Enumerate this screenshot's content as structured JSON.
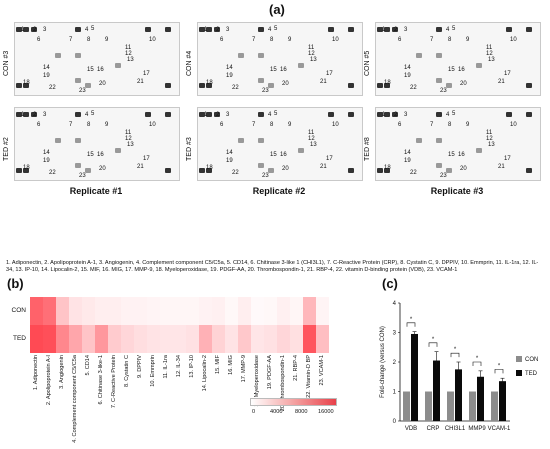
{
  "panel_labels": {
    "a": "(a)",
    "b": "(b)",
    "c": "(c)"
  },
  "blots": {
    "row_labels": [
      "CON #3",
      "CON #4",
      "CON #5",
      "TED #2",
      "TED #3",
      "TED #8"
    ],
    "replicates": [
      "Replicate #1",
      "Replicate #2",
      "Replicate #3"
    ],
    "spot_numbers": [
      "1",
      "2",
      "3",
      "4",
      "5",
      "6",
      "7",
      "8",
      "9",
      "10",
      "11",
      "12",
      "13",
      "14",
      "15",
      "16",
      "17",
      "18",
      "19",
      "20",
      "21",
      "22",
      "23"
    ]
  },
  "legend": "1. Adiponectin, 2. Apolipoprotein A-1, 3. Angiogenin, 4. Complement component C5/C5a, 5. CD14, 6. Chitinase 3-like 1 (CHI3L1), 7. C-Reactive Protein (CRP), 8. Cystatin C, 9. DPPIV, 10. Emmprin, 11. IL-1ra, 12. IL-34, 13. IP-10, 14. Lipocalin-2, 15. MIF, 16. MIG, 17. MMP-9, 18. Myeloperoxidase, 19. PDGF-AA, 20. Thrombospondin-1, 21. RBP-4, 22. vitamin D-binding protein (VDB), 23. VCAM-1",
  "heatmap": {
    "rows": [
      "CON",
      "TED"
    ],
    "columns": [
      "1. Adiponectin",
      "2. Apolipoprotein A-I",
      "3. Angiogenin",
      "4. Complement component C5/C5a",
      "5. CD14",
      "6. Chitinase 3-like-1",
      "7. C-Reactive Protein",
      "8. Cystatin C",
      "9. DPPIV",
      "10. Emmprin",
      "11. IL-1ra",
      "12. IL-34",
      "13. IP-10",
      "14. Lipocalin-2",
      "15. MIF",
      "16. MIG",
      "17. MMP-9",
      "18. Myeloperoxidase",
      "19. PDGF-AA",
      "20. Thrombospondin-1",
      "21. RBP-4",
      "22. Vitamin-D BP",
      "23. VCAM-1"
    ],
    "values": {
      "CON": [
        8500,
        7800,
        3200,
        1500,
        1200,
        900,
        900,
        700,
        700,
        600,
        500,
        500,
        500,
        700,
        800,
        400,
        900,
        300,
        400,
        800,
        500,
        3900,
        600
      ],
      "TED": [
        9800,
        9500,
        6500,
        4800,
        3200,
        5600,
        2800,
        2200,
        1800,
        1500,
        1400,
        1400,
        1600,
        4200,
        2400,
        1500,
        3000,
        1400,
        1600,
        2200,
        1700,
        9200,
        3500
      ]
    },
    "colorbar_ticks": [
      "0",
      "4000",
      "8000",
      "16000"
    ]
  },
  "chart_data": {
    "type": "bar",
    "categories": [
      "VDB",
      "CRP",
      "CHI3L1",
      "MMP9",
      "VCAM-1"
    ],
    "series": [
      {
        "name": "CON",
        "color": "#8c8c8c",
        "values": [
          1,
          1,
          1,
          1,
          1
        ]
      },
      {
        "name": "TED",
        "color": "#0a0a0a",
        "values": [
          2.95,
          2.05,
          1.75,
          1.5,
          1.35
        ]
      }
    ],
    "errors_ted": [
      0.08,
      0.3,
      0.25,
      0.2,
      0.1
    ],
    "ylabel": "Fold-change (versus CON)",
    "ylim": [
      0,
      4
    ],
    "yticks": [
      "0",
      "1",
      "2",
      "3",
      "4"
    ],
    "significance": [
      "*",
      "*",
      "*",
      "*",
      "*"
    ]
  }
}
